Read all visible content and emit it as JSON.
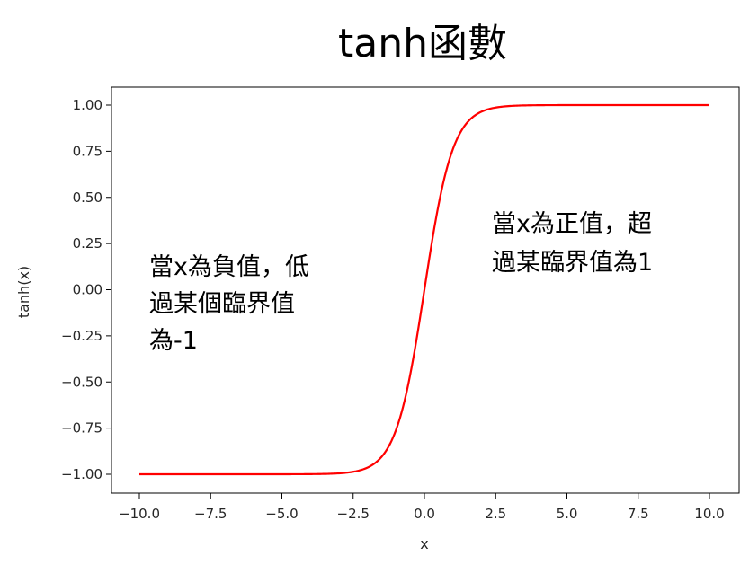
{
  "chart_data": {
    "type": "line",
    "title": "tanh函數",
    "xlabel": "x",
    "ylabel": "tanh(x)",
    "xlim": [
      -10.0,
      10.0
    ],
    "ylim": [
      -1.0,
      1.0
    ],
    "x_ticks": [
      "−10.0",
      "−7.5",
      "−5.0",
      "−2.5",
      "0.0",
      "2.5",
      "5.0",
      "7.5",
      "10.0"
    ],
    "y_ticks": [
      "1.00",
      "0.75",
      "0.50",
      "0.25",
      "0.00",
      "−0.25",
      "−0.50",
      "−0.75",
      "−1.00"
    ],
    "grid": false,
    "series": [
      {
        "color": "#ff0000",
        "function": "tanh",
        "x": [
          -10,
          -9,
          -8,
          -7,
          -6,
          -5,
          -4,
          -3.5,
          -3,
          -2.5,
          -2,
          -1.75,
          -1.5,
          -1.25,
          -1,
          -0.75,
          -0.5,
          -0.25,
          0,
          0.25,
          0.5,
          0.75,
          1,
          1.25,
          1.5,
          1.75,
          2,
          2.5,
          3,
          3.5,
          4,
          5,
          6,
          7,
          8,
          9,
          10
        ],
        "y": [
          -1.0,
          -1.0,
          -1.0,
          -1.0,
          -1.0,
          -0.9999,
          -0.9993,
          -0.9982,
          -0.9951,
          -0.9866,
          -0.964,
          -0.9414,
          -0.9051,
          -0.8483,
          -0.7616,
          -0.6351,
          -0.4621,
          -0.2449,
          0.0,
          0.2449,
          0.4621,
          0.6351,
          0.7616,
          0.8483,
          0.9051,
          0.9414,
          0.964,
          0.9866,
          0.9951,
          0.9982,
          0.9993,
          0.9999,
          1.0,
          1.0,
          1.0,
          1.0,
          1.0
        ]
      }
    ],
    "annotations": [
      {
        "lines": [
          "當x為負值，低",
          "過某個臨界值",
          "為-1"
        ]
      },
      {
        "lines": [
          "當x為正值，超",
          "過某臨界值為1"
        ]
      }
    ]
  }
}
